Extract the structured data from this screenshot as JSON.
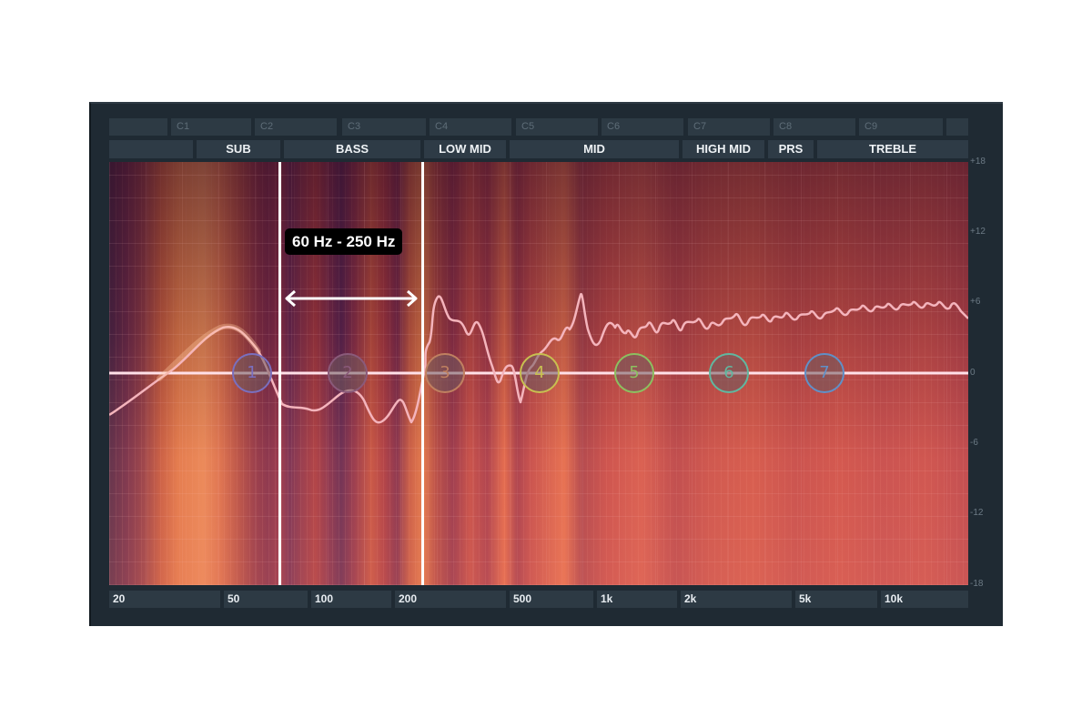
{
  "note_row": [
    "",
    "C1",
    "C2",
    "C3",
    "C4",
    "C5",
    "C6",
    "C7",
    "C8",
    "C9",
    ""
  ],
  "bands": [
    "",
    "SUB",
    "BASS",
    "LOW MID",
    "MID",
    "HIGH MID",
    "PRS",
    "TREBLE"
  ],
  "freq_labels": [
    "20",
    "50",
    "100",
    "200",
    "500",
    "1k",
    "2k",
    "5k",
    "10k"
  ],
  "db_labels": [
    "+18",
    "+12",
    "+6",
    "0",
    "-6",
    "-12",
    "-18"
  ],
  "range_label": "60 Hz - 250 Hz",
  "nodes": [
    {
      "num": "1",
      "color": "#7a6fbf"
    },
    {
      "num": "2",
      "color": "#8a5a7a"
    },
    {
      "num": "3",
      "color": "#c08060"
    },
    {
      "num": "4",
      "color": "#c8c050"
    },
    {
      "num": "5",
      "color": "#8cc060"
    },
    {
      "num": "6",
      "color": "#60b8a0"
    },
    {
      "num": "7",
      "color": "#6090c8"
    }
  ],
  "colors": {
    "panel_bg": "#1f2a33",
    "zero_line": "#ffd8e0",
    "curve": "#f2b0b8",
    "marker": "#ffffff"
  }
}
